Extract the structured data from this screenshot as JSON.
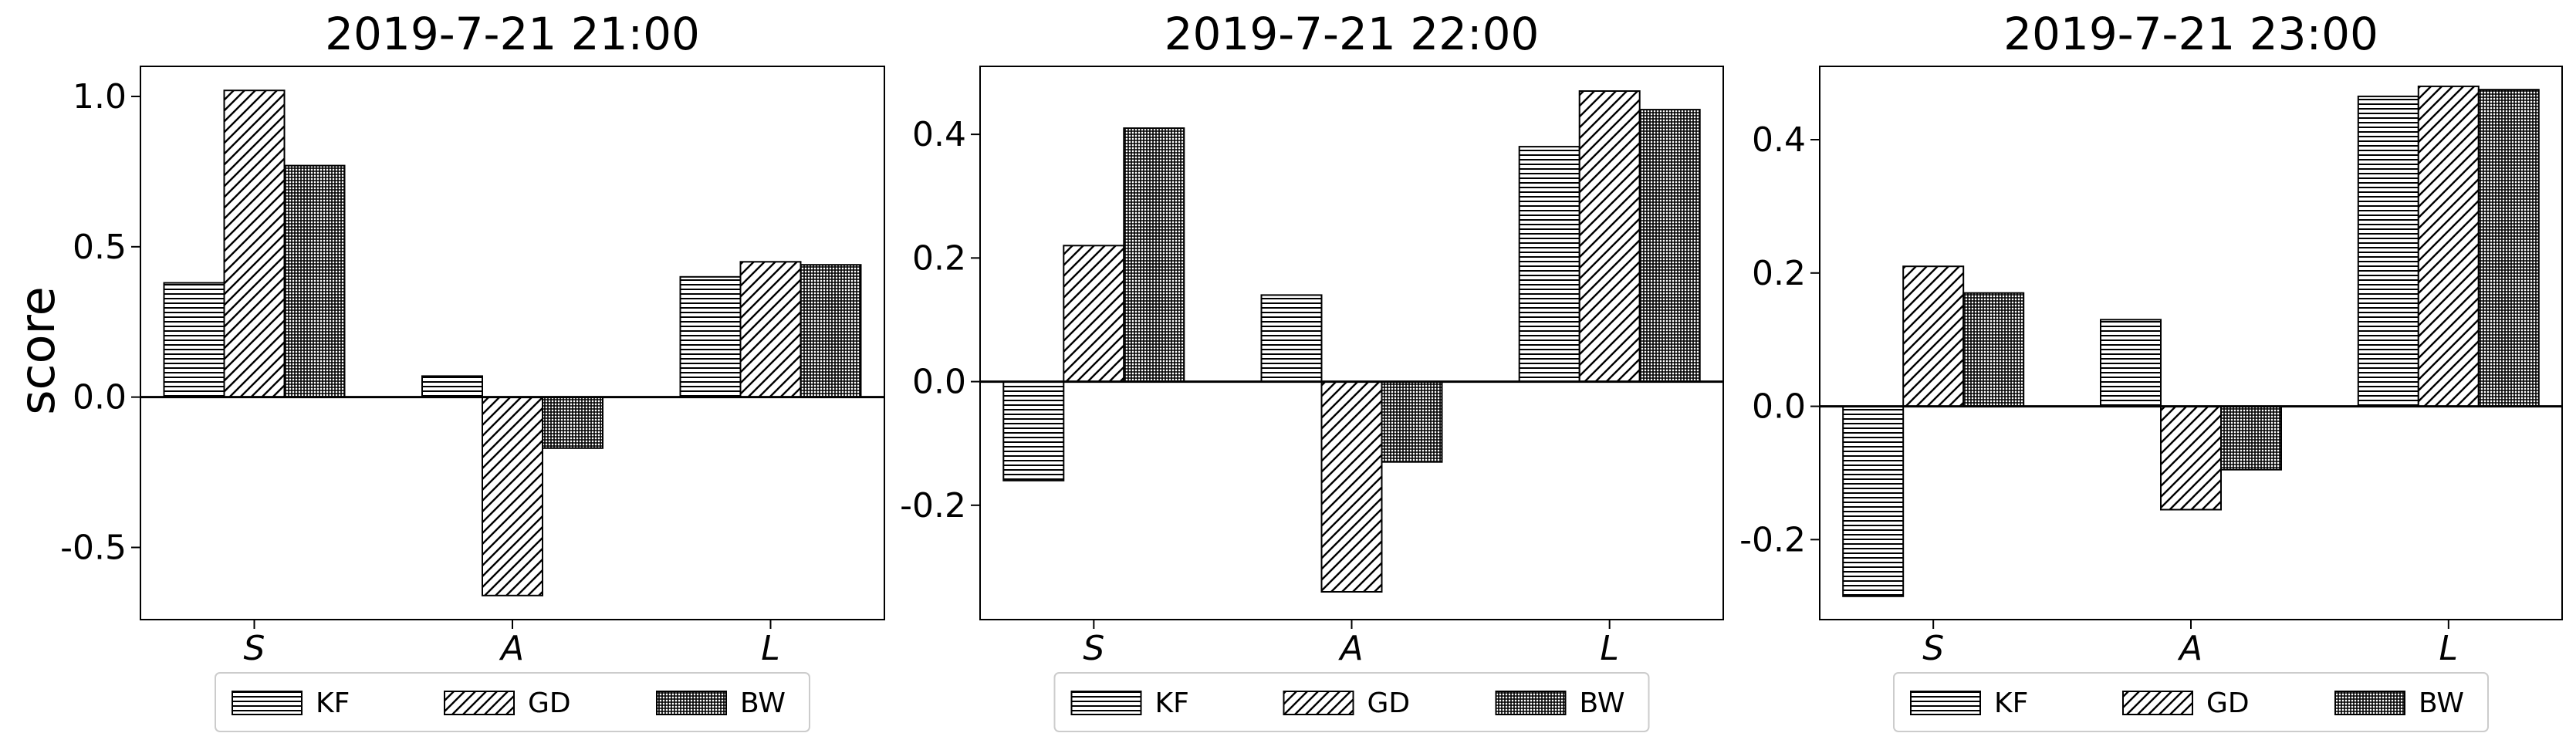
{
  "chart_data": [
    {
      "type": "bar",
      "title": "2019-7-21 21:00",
      "ylabel": "score",
      "categories": [
        "S",
        "A",
        "L"
      ],
      "ylim": [
        -0.74,
        1.1
      ],
      "yticks": [
        1.0,
        0.5,
        0.0,
        -0.5
      ],
      "ytick_labels": [
        "1.0",
        "0.5",
        "0.0",
        "-0.5"
      ],
      "series": [
        {
          "name": "KF",
          "pattern": "horizontal",
          "values": [
            0.38,
            0.07,
            0.4
          ]
        },
        {
          "name": "GD",
          "pattern": "diagonal",
          "values": [
            1.02,
            -0.66,
            0.45
          ]
        },
        {
          "name": "BW",
          "pattern": "grid",
          "values": [
            0.77,
            -0.17,
            0.44
          ]
        }
      ],
      "legend": "bottom-center"
    },
    {
      "type": "bar",
      "title": "2019-7-21 22:00",
      "categories": [
        "S",
        "A",
        "L"
      ],
      "ylim": [
        -0.385,
        0.51
      ],
      "yticks": [
        0.4,
        0.2,
        0.0,
        -0.2
      ],
      "ytick_labels": [
        "0.4",
        "0.2",
        "0.0",
        "-0.2"
      ],
      "series": [
        {
          "name": "KF",
          "pattern": "horizontal",
          "values": [
            -0.16,
            0.14,
            0.38
          ]
        },
        {
          "name": "GD",
          "pattern": "diagonal",
          "values": [
            0.22,
            -0.34,
            0.47
          ]
        },
        {
          "name": "BW",
          "pattern": "grid",
          "values": [
            0.41,
            -0.13,
            0.44
          ]
        }
      ],
      "legend": "bottom-center"
    },
    {
      "type": "bar",
      "title": "2019-7-21 23:00",
      "categories": [
        "S",
        "A",
        "L"
      ],
      "ylim": [
        -0.32,
        0.51
      ],
      "yticks": [
        0.4,
        0.2,
        0.0,
        -0.2
      ],
      "ytick_labels": [
        "0.4",
        "0.2",
        "0.0",
        "-0.2"
      ],
      "series": [
        {
          "name": "KF",
          "pattern": "horizontal",
          "values": [
            -0.285,
            0.13,
            0.465
          ]
        },
        {
          "name": "GD",
          "pattern": "diagonal",
          "values": [
            0.21,
            -0.155,
            0.48
          ]
        },
        {
          "name": "BW",
          "pattern": "grid",
          "values": [
            0.17,
            -0.095,
            0.475
          ]
        }
      ],
      "legend": "bottom-center"
    }
  ]
}
